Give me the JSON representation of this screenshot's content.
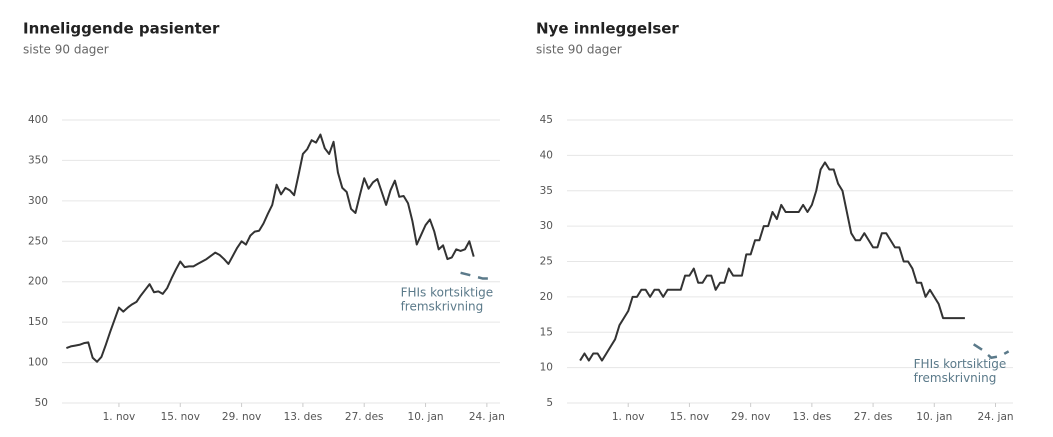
{
  "chart_data": [
    {
      "type": "line",
      "title": "Inneliggende pasienter",
      "subtitle": "siste 90 dager",
      "x": [
        -12,
        -11,
        -10,
        -9,
        -8,
        -7,
        -6,
        -5,
        -4,
        -3,
        -2,
        -1,
        0,
        1,
        2,
        3,
        4,
        5,
        6,
        7,
        8,
        9,
        10,
        11,
        12,
        13,
        14,
        15,
        16,
        17,
        18,
        19,
        20,
        21,
        22,
        23,
        24,
        25,
        26,
        27,
        28,
        29,
        30,
        31,
        32,
        33,
        34,
        35,
        36,
        37,
        38,
        39,
        40,
        41,
        42,
        43,
        44,
        45,
        46,
        47,
        48,
        49,
        50,
        51,
        52,
        53,
        54,
        55,
        56,
        57,
        58,
        59,
        60,
        61,
        62,
        63,
        64,
        65,
        66,
        67,
        68,
        69,
        70,
        71,
        72,
        73,
        74,
        75,
        76,
        77,
        78,
        79,
        80,
        81
      ],
      "values": [
        118,
        120,
        121,
        122,
        124,
        125,
        106,
        101,
        107,
        122,
        138,
        153,
        168,
        163,
        168,
        172,
        175,
        183,
        190,
        197,
        187,
        188,
        185,
        192,
        204,
        215,
        225,
        218,
        219,
        219,
        222,
        225,
        228,
        232,
        236,
        233,
        228,
        222,
        232,
        242,
        250,
        246,
        257,
        262,
        263,
        272,
        284,
        295,
        320,
        308,
        316,
        313,
        307,
        332,
        358,
        364,
        375,
        372,
        382,
        365,
        358,
        373,
        335,
        316,
        311,
        290,
        285,
        307,
        328,
        315,
        323,
        327,
        311,
        295,
        313,
        325,
        305,
        306,
        297,
        275,
        246,
        258,
        270,
        277,
        262,
        240,
        245,
        228,
        230,
        240,
        238,
        240,
        250,
        231
      ],
      "color": "#333333",
      "forecast": {
        "x": [
          78,
          81,
          83,
          85
        ],
        "values": [
          211,
          207,
          204,
          204
        ],
        "color": "#5b7a8a"
      },
      "annotation": [
        "FHIs kortsiktige",
        "fremskrivning"
      ],
      "xlim": [
        -13,
        87
      ],
      "xticks": [
        {
          "value": 0,
          "label": "1. nov"
        },
        {
          "value": 14,
          "label": "15. nov"
        },
        {
          "value": 28,
          "label": "29. nov"
        },
        {
          "value": 42,
          "label": "13. des"
        },
        {
          "value": 56,
          "label": "27. des"
        },
        {
          "value": 70,
          "label": "10. jan"
        },
        {
          "value": 84,
          "label": "24. jan"
        }
      ],
      "ylim": [
        50,
        400
      ],
      "yticks": [
        50,
        100,
        150,
        200,
        250,
        300,
        350,
        400
      ],
      "grid": true
    },
    {
      "type": "line",
      "title": "Nye innleggelser",
      "subtitle": "siste 90 dager",
      "x": [
        -11,
        -10,
        -9,
        -8,
        -7,
        -6,
        -5,
        -4,
        -3,
        -2,
        -1,
        0,
        1,
        2,
        3,
        4,
        5,
        6,
        7,
        8,
        9,
        10,
        11,
        12,
        13,
        14,
        15,
        16,
        17,
        18,
        19,
        20,
        21,
        22,
        23,
        24,
        25,
        26,
        27,
        28,
        29,
        30,
        31,
        32,
        33,
        34,
        35,
        36,
        37,
        38,
        39,
        40,
        41,
        42,
        43,
        44,
        45,
        46,
        47,
        48,
        49,
        50,
        51,
        52,
        53,
        54,
        55,
        56,
        57,
        58,
        59,
        60,
        61,
        62,
        63,
        64,
        65,
        66,
        67,
        68,
        69,
        70,
        71,
        72,
        73,
        74,
        75,
        76,
        77
      ],
      "values": [
        11,
        12,
        11,
        12,
        12,
        11,
        12,
        13,
        14,
        16,
        17,
        18,
        20,
        20,
        21,
        21,
        20,
        21,
        21,
        20,
        21,
        21,
        21,
        21,
        23,
        23,
        24,
        22,
        22,
        23,
        23,
        21,
        22,
        22,
        24,
        23,
        23,
        23,
        26,
        26,
        28,
        28,
        30,
        30,
        32,
        31,
        33,
        32,
        32,
        32,
        32,
        33,
        32,
        33,
        35,
        38,
        39,
        38,
        38,
        36,
        35,
        32,
        29,
        28,
        28,
        29,
        28,
        27,
        27,
        29,
        29,
        28,
        27,
        27,
        25,
        25,
        24,
        22,
        22,
        20,
        21,
        20,
        19,
        17,
        17,
        17,
        17,
        17,
        17
      ],
      "color": "#333333",
      "forecast": {
        "x": [
          79,
          81,
          83,
          85,
          87
        ],
        "values": [
          13.3,
          12.5,
          11.4,
          11.6,
          12.3
        ],
        "color": "#5b7a8a"
      },
      "annotation": [
        "FHIs kortsiktige",
        "fremskrivning"
      ],
      "xlim": [
        -14,
        88
      ],
      "xticks": [
        {
          "value": 0,
          "label": "1. nov"
        },
        {
          "value": 14,
          "label": "15. nov"
        },
        {
          "value": 28,
          "label": "29. nov"
        },
        {
          "value": 42,
          "label": "13. des"
        },
        {
          "value": 56,
          "label": "27. des"
        },
        {
          "value": 70,
          "label": "10. jan"
        },
        {
          "value": 84,
          "label": "24. jan"
        }
      ],
      "ylim": [
        5,
        45
      ],
      "yticks": [
        5,
        10,
        15,
        20,
        25,
        30,
        35,
        40,
        45
      ],
      "grid": true
    }
  ]
}
